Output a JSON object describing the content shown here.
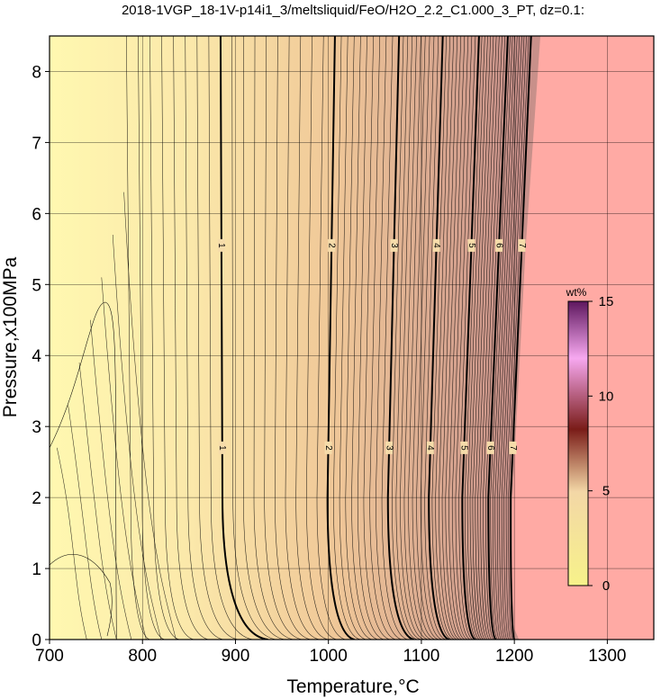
{
  "chart_data": {
    "type": "contour",
    "title": "2018-1VGP_18-1V-p14i1_3/meltsliquid/FeO/H2O_2.2_C1.000_3_PT, dz=0.1:",
    "xlabel": "Temperature,°C",
    "ylabel": "Pressure,x100MPa",
    "xlim": [
      700,
      1350
    ],
    "ylim": [
      0,
      8.5
    ],
    "x_ticks": [
      "700",
      "800",
      "900",
      "1000",
      "1100",
      "1200",
      "1300"
    ],
    "y_ticks": [
      "0",
      "1",
      "2",
      "3",
      "4",
      "5",
      "6",
      "7",
      "8"
    ],
    "grid": true,
    "z_variable": "FeO (wt%)",
    "contour_interval": 0.1,
    "major_contours": [
      {
        "label": "1",
        "value": 1,
        "T_at_P0": 935,
        "T_at_P2": 886,
        "T_at_P8.5": 884
      },
      {
        "label": "2",
        "value": 2,
        "T_at_P0": 1028,
        "T_at_P2": 999,
        "T_at_P8.5": 1007
      },
      {
        "label": "3",
        "value": 3,
        "T_at_P0": 1092,
        "T_at_P2": 1064,
        "T_at_P8.5": 1076
      },
      {
        "label": "4",
        "value": 4,
        "T_at_P0": 1130,
        "T_at_P2": 1108,
        "T_at_P8.5": 1123
      },
      {
        "label": "5",
        "value": 5,
        "T_at_P0": 1158,
        "T_at_P2": 1144,
        "T_at_P8.5": 1162
      },
      {
        "label": "6",
        "value": 6,
        "T_at_P0": 1180,
        "T_at_P2": 1172,
        "T_at_P8.5": 1193
      },
      {
        "label": "7",
        "value": 7,
        "T_at_P0": 1200,
        "T_at_P2": 1196,
        "T_at_P8.5": 1218
      }
    ],
    "liquidus_boundary": [
      [
        1205,
        0
      ],
      [
        1200,
        0.15
      ],
      [
        1197,
        1
      ],
      [
        1198,
        2
      ],
      [
        1204,
        3.5
      ],
      [
        1212,
        5.5
      ],
      [
        1228,
        8.5
      ]
    ],
    "region_colors": {
      "low": "#fff8b0",
      "mid": "#f0c898",
      "high": "#c8908a",
      "above_liquidus": "#ffaaa4"
    },
    "colorbar": {
      "label": "wt%",
      "range": [
        0,
        15
      ],
      "ticks": [
        "0",
        "5",
        "10",
        "15"
      ],
      "colors": [
        "#f7f28a",
        "#f3d7a6",
        "#7a1c18",
        "#f7a8f0",
        "#5e175e"
      ]
    }
  }
}
